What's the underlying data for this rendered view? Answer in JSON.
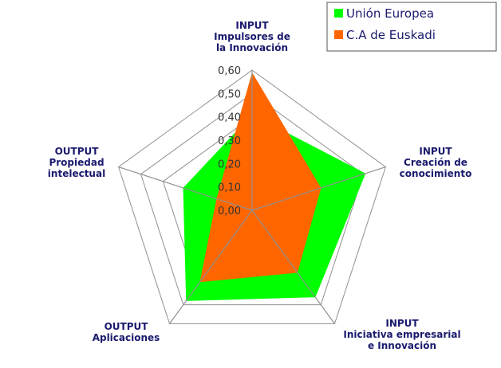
{
  "chart_data": {
    "type": "radar",
    "axes": [
      [
        "INPUT",
        "Impulsores de",
        "la Innovación"
      ],
      [
        "INPUT",
        "Creación de",
        "conocimiento"
      ],
      [
        "INPUT",
        "Iniciativa empresarial",
        "e Innovación"
      ],
      [
        "OUTPUT",
        "Aplicaciones"
      ],
      [
        "OUTPUT",
        "Propiedad",
        "intelectual"
      ]
    ],
    "rmax": 0.6,
    "ticks": [
      "0,00",
      "0,10",
      "0,20",
      "0,30",
      "0,40",
      "0,50",
      "0,60"
    ],
    "tick_values": [
      0,
      0.1,
      0.2,
      0.3,
      0.4,
      0.5,
      0.6
    ],
    "series": [
      {
        "name": "Unión Europea",
        "color": "#00ff00",
        "values": [
          0.41,
          0.51,
          0.46,
          0.48,
          0.31
        ]
      },
      {
        "name": "C.A de Euskadi",
        "color": "#ff6600",
        "values": [
          0.59,
          0.31,
          0.33,
          0.38,
          0.16
        ]
      }
    ],
    "legend_position": "top-right",
    "grid": true
  }
}
